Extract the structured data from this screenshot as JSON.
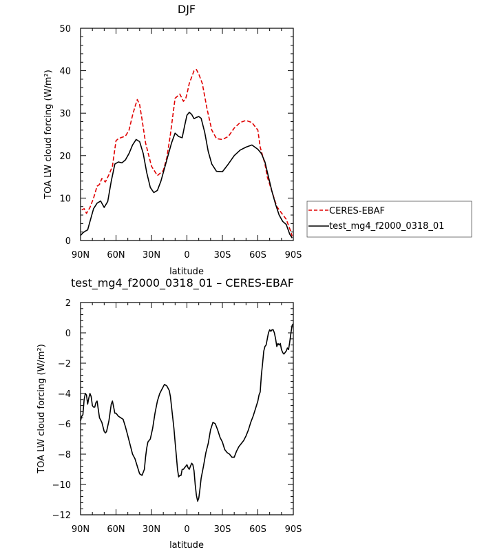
{
  "chart_data": [
    {
      "type": "line",
      "title": "DJF",
      "xlabel": "latitude",
      "ylabel": "TOA LW cloud forcing (W/m²)",
      "xlim": [
        -90,
        90
      ],
      "ylim": [
        0,
        50
      ],
      "x_tick_labels": [
        "90N",
        "60N",
        "30N",
        "0",
        "30S",
        "60S",
        "90S"
      ],
      "y_tick_labels": [
        "0",
        "10",
        "20",
        "30",
        "40",
        "50"
      ],
      "legend_position": "right",
      "series": [
        {
          "name": "CERES-EBAF",
          "color": "#e00000",
          "dash": "dashed",
          "x": [
            -89,
            -87,
            -85,
            -82,
            -79,
            -76,
            -74,
            -72,
            -69,
            -66,
            -63,
            -60,
            -58,
            -55,
            -52,
            -49,
            -46,
            -44,
            -42,
            -40,
            -38,
            -35,
            -30,
            -25,
            -20,
            -17,
            -14,
            -10,
            -6,
            -3,
            -1,
            0,
            2,
            4,
            6,
            8,
            10,
            13,
            17,
            21,
            25,
            30,
            35,
            40,
            45,
            50,
            55,
            60,
            62,
            64,
            66,
            68,
            72,
            76,
            80,
            84,
            88,
            89
          ],
          "y": [
            7.2,
            7.5,
            6.4,
            7.8,
            10.0,
            12.8,
            13.2,
            14.6,
            13.8,
            15.5,
            17.5,
            23.5,
            24.0,
            24.3,
            24.6,
            26.0,
            29.5,
            31.5,
            33.2,
            32.0,
            28.5,
            23.0,
            17.5,
            15.3,
            16.5,
            19.5,
            25.0,
            33.5,
            34.5,
            32.8,
            33.5,
            34.5,
            37.0,
            38.5,
            40.0,
            40.3,
            39.2,
            37.0,
            31.0,
            26.0,
            24.0,
            23.8,
            24.5,
            26.5,
            27.8,
            28.3,
            27.8,
            26.0,
            22.0,
            20.0,
            18.0,
            15.0,
            11.5,
            8.0,
            6.5,
            5.0,
            2.0,
            1.0
          ]
        },
        {
          "name": "test_mg4_f2000_0318_01",
          "color": "#000000",
          "dash": "solid",
          "x": [
            -90,
            -88,
            -86,
            -84,
            -82,
            -79,
            -76,
            -73,
            -70,
            -67,
            -64,
            -61,
            -58,
            -55,
            -52,
            -49,
            -46,
            -43,
            -40,
            -37,
            -34,
            -31,
            -28,
            -25,
            -22,
            -19,
            -16,
            -13,
            -10,
            -7,
            -4,
            -2,
            0,
            2,
            4,
            6,
            8,
            10,
            12,
            15,
            18,
            21,
            25,
            30,
            35,
            40,
            45,
            50,
            55,
            60,
            63,
            66,
            69,
            72,
            75,
            78,
            81,
            84,
            87,
            89
          ],
          "y": [
            1.2,
            1.8,
            2.2,
            2.5,
            4.5,
            7.5,
            8.8,
            9.3,
            7.8,
            9.2,
            14.0,
            18.0,
            18.5,
            18.3,
            19.0,
            20.5,
            22.5,
            23.8,
            23.3,
            20.5,
            16.0,
            12.5,
            11.3,
            11.8,
            14.0,
            17.0,
            20.0,
            23.0,
            25.3,
            24.5,
            24.2,
            27.0,
            29.5,
            30.2,
            29.7,
            28.7,
            29.0,
            29.2,
            28.8,
            25.5,
            21.0,
            18.0,
            16.3,
            16.2,
            18.0,
            20.0,
            21.3,
            22.0,
            22.5,
            21.5,
            20.5,
            18.5,
            15.0,
            11.5,
            8.5,
            6.0,
            4.5,
            3.8,
            1.5,
            0.6
          ]
        }
      ]
    },
    {
      "type": "line",
      "title": "test_mg4_f2000_0318_01 – CERES-EBAF",
      "xlabel": "latitude",
      "ylabel": "TOA LW cloud forcing (W/m²)",
      "xlim": [
        -90,
        90
      ],
      "ylim": [
        -12,
        2
      ],
      "x_tick_labels": [
        "90N",
        "60N",
        "30N",
        "0",
        "30S",
        "60S",
        "90S"
      ],
      "y_tick_labels": [
        "−12",
        "−10",
        "−8",
        "−6",
        "−4",
        "−2",
        "0",
        "2"
      ],
      "series": [
        {
          "color": "#000000",
          "dash": "solid",
          "x": [
            -90,
            -89,
            -88,
            -87,
            -86,
            -85,
            -84,
            -83,
            -82,
            -81,
            -80,
            -79,
            -78,
            -77,
            -76,
            -74,
            -72,
            -70,
            -69,
            -68,
            -66,
            -64,
            -63,
            -62,
            -61,
            -60,
            -59,
            -58,
            -56,
            -54,
            -52,
            -50,
            -48,
            -46,
            -44,
            -42,
            -40,
            -38,
            -36,
            -35,
            -34,
            -33,
            -31,
            -29,
            -27,
            -25,
            -23,
            -21,
            -19,
            -17,
            -15,
            -14,
            -13,
            -12,
            -11,
            -10,
            -9,
            -8,
            -7,
            -6,
            -5,
            -4,
            -3,
            -2,
            -1,
            0,
            1,
            2,
            3,
            4,
            5,
            6,
            7,
            8,
            9,
            10,
            11,
            12,
            14,
            16,
            18,
            20,
            22,
            24,
            26,
            28,
            30,
            32,
            34,
            36,
            38,
            40,
            42,
            44,
            46,
            48,
            50,
            52,
            54,
            56,
            58,
            60,
            61,
            62,
            63,
            64,
            65,
            66,
            67,
            68,
            69,
            70,
            71,
            72,
            73,
            74,
            75,
            76,
            77,
            78,
            79,
            80,
            81,
            82,
            83,
            84,
            85,
            86,
            87,
            88,
            89,
            90
          ],
          "y": [
            -5.8,
            -5.5,
            -5.4,
            -4.4,
            -4.0,
            -4.1,
            -4.7,
            -4.3,
            -4.0,
            -4.2,
            -4.8,
            -4.9,
            -4.9,
            -4.6,
            -4.5,
            -5.6,
            -5.9,
            -6.5,
            -6.6,
            -6.5,
            -5.8,
            -4.7,
            -4.5,
            -4.9,
            -5.3,
            -5.3,
            -5.4,
            -5.5,
            -5.6,
            -5.7,
            -6.2,
            -6.8,
            -7.4,
            -8.0,
            -8.3,
            -8.8,
            -9.3,
            -9.4,
            -9.0,
            -8.2,
            -7.6,
            -7.2,
            -7.0,
            -6.3,
            -5.3,
            -4.5,
            -4.0,
            -3.7,
            -3.4,
            -3.5,
            -3.8,
            -4.2,
            -4.9,
            -5.6,
            -6.3,
            -7.2,
            -8.1,
            -9.0,
            -9.5,
            -9.4,
            -9.4,
            -9.0,
            -9.0,
            -8.9,
            -8.8,
            -8.7,
            -8.9,
            -9.0,
            -8.8,
            -8.6,
            -8.7,
            -9.1,
            -10.0,
            -10.7,
            -11.1,
            -10.9,
            -10.3,
            -9.6,
            -8.8,
            -7.9,
            -7.3,
            -6.4,
            -5.9,
            -6.0,
            -6.4,
            -6.9,
            -7.2,
            -7.7,
            -7.9,
            -8.0,
            -8.2,
            -8.2,
            -7.8,
            -7.5,
            -7.3,
            -7.1,
            -6.8,
            -6.4,
            -5.9,
            -5.5,
            -5.0,
            -4.5,
            -4.1,
            -3.9,
            -2.8,
            -2.0,
            -1.2,
            -0.9,
            -0.8,
            -0.4,
            0.0,
            0.2,
            0.1,
            0.2,
            0.2,
            0.0,
            -0.4,
            -0.9,
            -0.7,
            -0.8,
            -0.7,
            -1.1,
            -1.3,
            -1.4,
            -1.3,
            -1.2,
            -1.0,
            -1.1,
            -0.6,
            0.0,
            0.5,
            0.6
          ]
        }
      ]
    }
  ]
}
